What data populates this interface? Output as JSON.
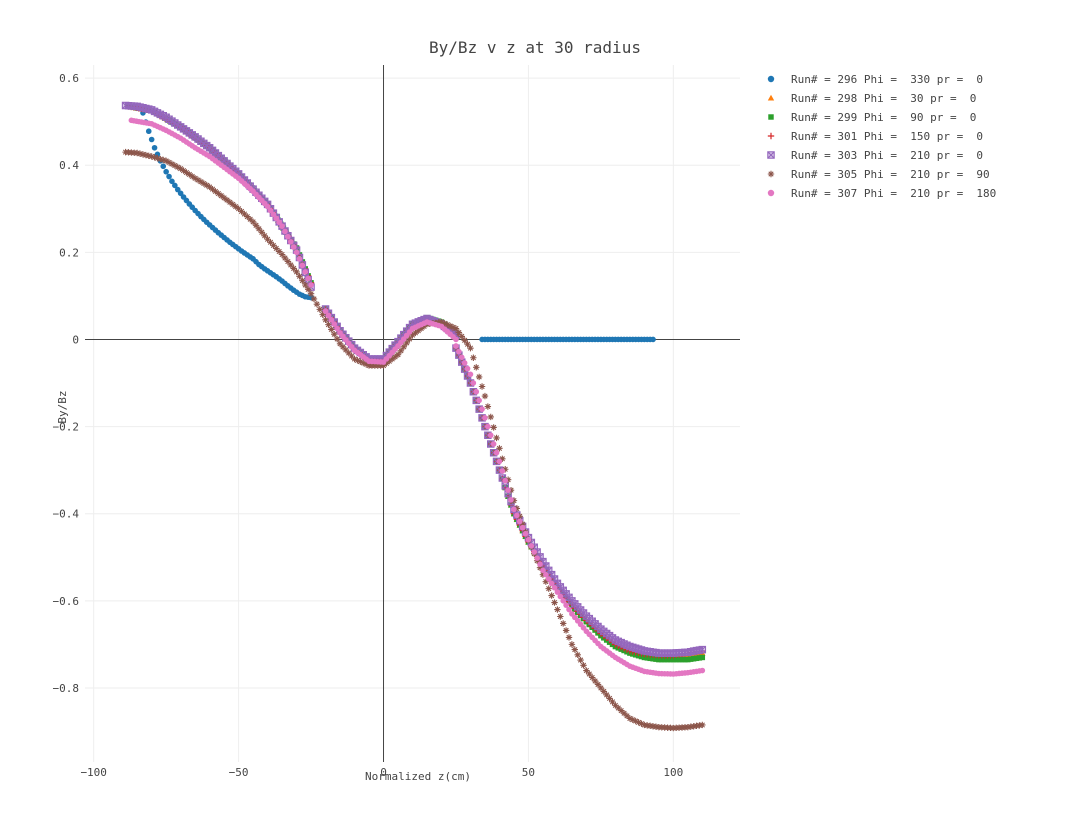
{
  "chart_data": {
    "type": "scatter",
    "title": "By/Bz v z at 30 radius",
    "xlabel": "Normalized z(cm)",
    "ylabel": "By/Bz",
    "xlim": [
      -103,
      123
    ],
    "ylim": [
      -0.97,
      0.63
    ],
    "grid": true,
    "legend_position": "top-right",
    "x_ticks": [
      -100,
      -50,
      0,
      50,
      100
    ],
    "x_tick_labels": [
      "−100",
      "−50",
      "0",
      "50",
      "100"
    ],
    "y_ticks": [
      0.6,
      0.4,
      0.2,
      0,
      -0.2,
      -0.4,
      -0.6,
      -0.8
    ],
    "y_tick_labels": [
      "0.6",
      "0.4",
      "0.2",
      "0",
      "−0.2",
      "−0.4",
      "−0.6",
      "−0.8"
    ],
    "series": [
      {
        "name": "Run# = 296 Phi =  330 pr =  0",
        "color": "#1f77b4",
        "marker": "circle",
        "segments": [
          {
            "x": [
              -83,
              -81,
              -79,
              -77,
              -75,
              -73,
              -71,
              -69,
              -67,
              -65,
              -63,
              -61,
              -59,
              -57,
              -55,
              -53,
              -51,
              -49,
              -47,
              -45,
              -43,
              -41,
              -39,
              -37,
              -35,
              -33,
              -31,
              -29,
              -27,
              -25
            ],
            "y": [
              0.52,
              0.478,
              0.44,
              0.41,
              0.385,
              0.363,
              0.344,
              0.327,
              0.311,
              0.296,
              0.282,
              0.269,
              0.257,
              0.245,
              0.234,
              0.223,
              0.213,
              0.203,
              0.194,
              0.185,
              0.172,
              0.162,
              0.153,
              0.144,
              0.134,
              0.123,
              0.113,
              0.104,
              0.098,
              0.096
            ]
          },
          {
            "x": [
              34,
              37,
              40,
              43,
              46,
              49,
              52,
              55,
              58,
              61,
              64,
              67,
              70,
              73,
              76,
              79,
              82,
              85,
              88,
              91,
              93
            ],
            "y": [
              0,
              0,
              0,
              0,
              0,
              0,
              0,
              0,
              0,
              0,
              0,
              0,
              0,
              0,
              0,
              0,
              0,
              0,
              0,
              0,
              0
            ]
          }
        ]
      },
      {
        "name": "Run# = 298 Phi =  30 pr =  0",
        "color": "#ff7f0e",
        "marker": "triangle",
        "segments": [
          {
            "x": [
              -88,
              -80,
              -70,
              -60,
              -50,
              -40,
              -30,
              -25
            ],
            "y": [
              0.535,
              0.525,
              0.488,
              0.44,
              0.38,
              0.31,
              0.21,
              0.13
            ]
          },
          {
            "x": [
              -20,
              -15,
              -10,
              -5,
              0,
              5,
              10,
              15,
              20,
              25
            ],
            "y": [
              0.07,
              0.02,
              -0.02,
              -0.045,
              -0.045,
              -0.005,
              0.035,
              0.048,
              0.035,
              0.01
            ]
          },
          {
            "x": [
              25,
              30,
              35,
              40,
              45,
              50,
              55,
              60,
              65,
              70,
              75,
              80,
              85,
              90,
              95,
              100,
              105,
              110
            ],
            "y": [
              -0.02,
              -0.1,
              -0.2,
              -0.3,
              -0.4,
              -0.465,
              -0.52,
              -0.57,
              -0.61,
              -0.645,
              -0.675,
              -0.7,
              -0.715,
              -0.725,
              -0.73,
              -0.73,
              -0.728,
              -0.72
            ]
          }
        ]
      },
      {
        "name": "Run# = 299 Phi =  90 pr =  0",
        "color": "#2ca02c",
        "marker": "square",
        "segments": [
          {
            "x": [
              -88,
              -80,
              -70,
              -60,
              -50,
              -40,
              -30,
              -25
            ],
            "y": [
              0.535,
              0.525,
              0.488,
              0.44,
              0.38,
              0.31,
              0.21,
              0.13
            ]
          },
          {
            "x": [
              -20,
              -15,
              -10,
              -5,
              0,
              5,
              10,
              15,
              20,
              25
            ],
            "y": [
              0.07,
              0.02,
              -0.02,
              -0.045,
              -0.045,
              -0.005,
              0.035,
              0.05,
              0.04,
              0.012
            ]
          },
          {
            "x": [
              25,
              30,
              35,
              40,
              45,
              50,
              55,
              60,
              65,
              70,
              75,
              80,
              85,
              90,
              95,
              100,
              105,
              110
            ],
            "y": [
              -0.02,
              -0.1,
              -0.2,
              -0.3,
              -0.4,
              -0.465,
              -0.52,
              -0.57,
              -0.612,
              -0.648,
              -0.68,
              -0.705,
              -0.72,
              -0.73,
              -0.735,
              -0.735,
              -0.735,
              -0.73
            ]
          }
        ]
      },
      {
        "name": "Run# = 301 Phi =  150 pr =  0",
        "color": "#d62728",
        "marker": "plus",
        "segments": [
          {
            "x": [
              -88,
              -80,
              -70,
              -60,
              -50,
              -40,
              -30,
              -25
            ],
            "y": [
              0.535,
              0.525,
              0.488,
              0.44,
              0.38,
              0.31,
              0.21,
              0.13
            ]
          },
          {
            "x": [
              -20,
              -15,
              -10,
              -5,
              0,
              5,
              10,
              15,
              20,
              25
            ],
            "y": [
              0.07,
              0.02,
              -0.02,
              -0.045,
              -0.045,
              -0.005,
              0.035,
              0.048,
              0.035,
              0.01
            ]
          },
          {
            "x": [
              25,
              30,
              35,
              40,
              45,
              50,
              55,
              60,
              65,
              70,
              75,
              80,
              85,
              90,
              95,
              100,
              105,
              110
            ],
            "y": [
              -0.02,
              -0.1,
              -0.2,
              -0.3,
              -0.4,
              -0.465,
              -0.52,
              -0.57,
              -0.61,
              -0.645,
              -0.675,
              -0.7,
              -0.715,
              -0.722,
              -0.725,
              -0.725,
              -0.72,
              -0.715
            ]
          }
        ]
      },
      {
        "name": "Run# = 303 Phi =  210 pr =  0",
        "color": "#9467bd",
        "marker": "square-x",
        "segments": [
          {
            "x": [
              -89,
              -85,
              -80,
              -75,
              -70,
              -65,
              -60,
              -55,
              -50,
              -45,
              -40,
              -35,
              -30,
              -25
            ],
            "y": [
              0.537,
              0.535,
              0.527,
              0.51,
              0.488,
              0.465,
              0.44,
              0.41,
              0.38,
              0.345,
              0.31,
              0.26,
              0.205,
              0.12
            ]
          },
          {
            "x": [
              -20,
              -15,
              -10,
              -5,
              0,
              5,
              10,
              15,
              20,
              25
            ],
            "y": [
              0.07,
              0.02,
              -0.02,
              -0.045,
              -0.045,
              -0.005,
              0.035,
              0.048,
              0.035,
              0.01
            ]
          },
          {
            "x": [
              25,
              30,
              35,
              40,
              45,
              50,
              55,
              60,
              65,
              70,
              75,
              80,
              85,
              90,
              95,
              100,
              105,
              110
            ],
            "y": [
              -0.02,
              -0.1,
              -0.2,
              -0.3,
              -0.39,
              -0.455,
              -0.51,
              -0.56,
              -0.6,
              -0.635,
              -0.665,
              -0.69,
              -0.705,
              -0.715,
              -0.72,
              -0.72,
              -0.718,
              -0.712
            ]
          }
        ]
      },
      {
        "name": "Run# = 305 Phi =  210 pr =  90",
        "color": "#8c564b",
        "marker": "asterisk",
        "segments": [
          {
            "x": [
              -89,
              -85,
              -80,
              -75,
              -70,
              -65,
              -60,
              -55,
              -50,
              -45,
              -40,
              -35,
              -30,
              -25,
              -20,
              -15,
              -10,
              -5,
              0,
              5,
              10,
              15,
              20,
              25,
              30,
              35,
              40,
              45,
              50,
              55,
              60,
              65,
              70,
              75,
              80,
              85,
              90,
              95,
              100,
              105,
              110
            ],
            "y": [
              0.43,
              0.428,
              0.42,
              0.41,
              0.392,
              0.37,
              0.35,
              0.325,
              0.3,
              0.27,
              0.23,
              0.195,
              0.155,
              0.105,
              0.045,
              -0.01,
              -0.045,
              -0.06,
              -0.06,
              -0.035,
              0.01,
              0.035,
              0.04,
              0.025,
              -0.02,
              -0.13,
              -0.25,
              -0.37,
              -0.46,
              -0.54,
              -0.62,
              -0.7,
              -0.76,
              -0.8,
              -0.84,
              -0.87,
              -0.885,
              -0.89,
              -0.892,
              -0.89,
              -0.885
            ]
          }
        ]
      },
      {
        "name": "Run# = 307 Phi =  210 pr =  180",
        "color": "#e377c2",
        "marker": "circle",
        "segments": [
          {
            "x": [
              -87,
              -80,
              -75,
              -70,
              -65,
              -60,
              -55,
              -50,
              -45,
              -40,
              -35,
              -30,
              -25
            ],
            "y": [
              0.503,
              0.495,
              0.48,
              0.462,
              0.44,
              0.42,
              0.395,
              0.37,
              0.34,
              0.305,
              0.26,
              0.2,
              0.125
            ]
          },
          {
            "x": [
              -20,
              -15,
              -10,
              -5,
              0,
              5,
              10,
              15,
              20,
              25
            ],
            "y": [
              0.065,
              0.015,
              -0.025,
              -0.05,
              -0.052,
              -0.015,
              0.025,
              0.04,
              0.03,
              0.0
            ]
          },
          {
            "x": [
              25,
              30,
              35,
              40,
              45,
              50,
              55,
              60,
              65,
              70,
              75,
              80,
              85,
              90,
              95,
              100,
              105,
              110
            ],
            "y": [
              -0.015,
              -0.08,
              -0.18,
              -0.28,
              -0.39,
              -0.46,
              -0.53,
              -0.58,
              -0.63,
              -0.67,
              -0.705,
              -0.73,
              -0.75,
              -0.762,
              -0.767,
              -0.768,
              -0.765,
              -0.76
            ]
          }
        ]
      }
    ]
  }
}
